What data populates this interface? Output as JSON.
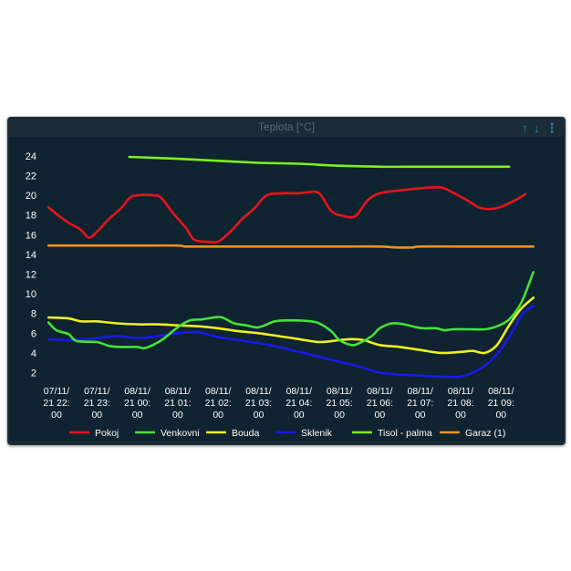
{
  "widget": {
    "title": "Teplota [°C]",
    "icons": {
      "up": "arrow-up-icon",
      "down": "arrow-down-icon",
      "menu": "vertical-dots-icon"
    }
  },
  "chart_data": {
    "type": "line",
    "xlabel": "",
    "ylabel": "",
    "ylim": [
      0,
      25
    ],
    "yticks": [
      2,
      4,
      6,
      8,
      10,
      12,
      14,
      16,
      18,
      20,
      22,
      24
    ],
    "xlim": [
      0,
      11.6
    ],
    "x_ticks": [
      {
        "x": 0,
        "lines": [
          "07/11/",
          "21 22:",
          "00"
        ]
      },
      {
        "x": 1,
        "lines": [
          "07/11/",
          "21 23:",
          "00"
        ]
      },
      {
        "x": 2,
        "lines": [
          "08/11/",
          "21 00:",
          "00"
        ]
      },
      {
        "x": 3,
        "lines": [
          "08/11/",
          "21 01:",
          "00"
        ]
      },
      {
        "x": 4,
        "lines": [
          "08/11/",
          "21 02:",
          "00"
        ]
      },
      {
        "x": 5,
        "lines": [
          "08/11/",
          "21 03:",
          "00"
        ]
      },
      {
        "x": 6,
        "lines": [
          "08/11/",
          "21 04:",
          "00"
        ]
      },
      {
        "x": 7,
        "lines": [
          "08/11/",
          "21 05:",
          "00"
        ]
      },
      {
        "x": 8,
        "lines": [
          "08/11/",
          "21 06:",
          "00"
        ]
      },
      {
        "x": 9,
        "lines": [
          "08/11/",
          "21 07:",
          "00"
        ]
      },
      {
        "x": 10,
        "lines": [
          "08/11/",
          "21 08:",
          "00"
        ]
      },
      {
        "x": 11,
        "lines": [
          "08/11/",
          "21 09:",
          "00"
        ]
      }
    ],
    "legend_position": "bottom",
    "grid": false,
    "series": [
      {
        "name": "Pokoj",
        "color": "#e8141c",
        "points": [
          [
            -0.2,
            18.8
          ],
          [
            0,
            18.1
          ],
          [
            0.3,
            17.2
          ],
          [
            0.6,
            16.5
          ],
          [
            0.8,
            15.7
          ],
          [
            1.0,
            16.3
          ],
          [
            1.3,
            17.6
          ],
          [
            1.6,
            18.7
          ],
          [
            1.8,
            19.7
          ],
          [
            2.0,
            20.0
          ],
          [
            2.4,
            20.0
          ],
          [
            2.6,
            19.7
          ],
          [
            2.9,
            18.1
          ],
          [
            3.2,
            16.7
          ],
          [
            3.4,
            15.5
          ],
          [
            3.7,
            15.3
          ],
          [
            4.0,
            15.3
          ],
          [
            4.3,
            16.3
          ],
          [
            4.6,
            17.6
          ],
          [
            4.9,
            18.7
          ],
          [
            5.2,
            20.0
          ],
          [
            5.6,
            20.2
          ],
          [
            6.0,
            20.2
          ],
          [
            6.2,
            20.3
          ],
          [
            6.5,
            20.2
          ],
          [
            6.8,
            18.4
          ],
          [
            7.1,
            17.9
          ],
          [
            7.4,
            17.9
          ],
          [
            7.7,
            19.5
          ],
          [
            8.0,
            20.2
          ],
          [
            8.5,
            20.5
          ],
          [
            9.0,
            20.7
          ],
          [
            9.5,
            20.8
          ],
          [
            9.8,
            20.3
          ],
          [
            10.2,
            19.4
          ],
          [
            10.5,
            18.7
          ],
          [
            10.9,
            18.7
          ],
          [
            11.3,
            19.4
          ],
          [
            11.6,
            20.1
          ]
        ]
      },
      {
        "name": "Venkovni",
        "color": "#45e23a",
        "points": [
          [
            -0.2,
            7.1
          ],
          [
            0,
            6.3
          ],
          [
            0.3,
            5.9
          ],
          [
            0.5,
            5.2
          ],
          [
            1.0,
            5.1
          ],
          [
            1.3,
            4.7
          ],
          [
            1.6,
            4.6
          ],
          [
            2.0,
            4.6
          ],
          [
            2.2,
            4.5
          ],
          [
            2.6,
            5.3
          ],
          [
            3.0,
            6.6
          ],
          [
            3.3,
            7.3
          ],
          [
            3.6,
            7.4
          ],
          [
            3.9,
            7.6
          ],
          [
            4.1,
            7.6
          ],
          [
            4.4,
            7.0
          ],
          [
            4.7,
            6.8
          ],
          [
            5.0,
            6.6
          ],
          [
            5.4,
            7.2
          ],
          [
            5.7,
            7.3
          ],
          [
            6.0,
            7.3
          ],
          [
            6.3,
            7.2
          ],
          [
            6.5,
            7.0
          ],
          [
            6.8,
            6.2
          ],
          [
            7.0,
            5.3
          ],
          [
            7.3,
            4.8
          ],
          [
            7.5,
            5.0
          ],
          [
            7.8,
            5.7
          ],
          [
            8.0,
            6.5
          ],
          [
            8.3,
            7.0
          ],
          [
            8.6,
            6.9
          ],
          [
            8.9,
            6.6
          ],
          [
            9.1,
            6.5
          ],
          [
            9.4,
            6.5
          ],
          [
            9.6,
            6.3
          ],
          [
            9.8,
            6.4
          ],
          [
            10.2,
            6.4
          ],
          [
            10.6,
            6.4
          ],
          [
            10.9,
            6.7
          ],
          [
            11.2,
            7.4
          ],
          [
            11.5,
            9.1
          ],
          [
            11.8,
            12.2
          ]
        ]
      },
      {
        "name": "Bouda",
        "color": "#f0f020",
        "points": [
          [
            -0.2,
            7.6
          ],
          [
            0.3,
            7.5
          ],
          [
            0.6,
            7.2
          ],
          [
            1.0,
            7.2
          ],
          [
            1.5,
            7.0
          ],
          [
            2.0,
            6.9
          ],
          [
            2.5,
            6.9
          ],
          [
            3.0,
            6.8
          ],
          [
            3.5,
            6.7
          ],
          [
            4.0,
            6.5
          ],
          [
            4.5,
            6.2
          ],
          [
            5.0,
            6.0
          ],
          [
            5.5,
            5.7
          ],
          [
            6.0,
            5.4
          ],
          [
            6.5,
            5.1
          ],
          [
            7.0,
            5.3
          ],
          [
            7.3,
            5.4
          ],
          [
            7.6,
            5.3
          ],
          [
            8.0,
            4.8
          ],
          [
            8.5,
            4.6
          ],
          [
            9.0,
            4.3
          ],
          [
            9.5,
            4.0
          ],
          [
            10.0,
            4.1
          ],
          [
            10.3,
            4.2
          ],
          [
            10.6,
            4.0
          ],
          [
            10.9,
            4.8
          ],
          [
            11.2,
            6.8
          ],
          [
            11.5,
            8.5
          ],
          [
            11.8,
            9.6
          ]
        ]
      },
      {
        "name": "Sklenik",
        "color": "#1a1ae8",
        "points": [
          [
            -0.2,
            5.4
          ],
          [
            0.3,
            5.3
          ],
          [
            1.0,
            5.5
          ],
          [
            1.5,
            5.7
          ],
          [
            2.0,
            5.5
          ],
          [
            2.5,
            5.7
          ],
          [
            3.0,
            6.0
          ],
          [
            3.5,
            6.1
          ],
          [
            4.0,
            5.6
          ],
          [
            4.5,
            5.3
          ],
          [
            5.0,
            5.0
          ],
          [
            5.5,
            4.6
          ],
          [
            6.0,
            4.1
          ],
          [
            6.5,
            3.6
          ],
          [
            7.0,
            3.1
          ],
          [
            7.5,
            2.6
          ],
          [
            8.0,
            2.0
          ],
          [
            8.5,
            1.8
          ],
          [
            9.0,
            1.7
          ],
          [
            9.5,
            1.6
          ],
          [
            10.0,
            1.6
          ],
          [
            10.4,
            2.2
          ],
          [
            10.8,
            3.4
          ],
          [
            11.2,
            5.6
          ],
          [
            11.5,
            7.8
          ],
          [
            11.8,
            8.8
          ]
        ]
      },
      {
        "name": "Tisol - palma",
        "color": "#7df01e",
        "points": [
          [
            1.8,
            23.9
          ],
          [
            3.0,
            23.7
          ],
          [
            4.0,
            23.5
          ],
          [
            5.0,
            23.3
          ],
          [
            6.0,
            23.2
          ],
          [
            7.0,
            23.0
          ],
          [
            8.0,
            22.9
          ],
          [
            9.0,
            22.9
          ],
          [
            10.0,
            22.9
          ],
          [
            11.2,
            22.9
          ]
        ]
      },
      {
        "name": "Garaz (1)",
        "color": "#f0921e",
        "points": [
          [
            -0.2,
            14.9
          ],
          [
            1.0,
            14.9
          ],
          [
            2.0,
            14.9
          ],
          [
            3.0,
            14.9
          ],
          [
            3.2,
            14.8
          ],
          [
            4.0,
            14.8
          ],
          [
            5.0,
            14.8
          ],
          [
            6.0,
            14.8
          ],
          [
            7.0,
            14.8
          ],
          [
            8.0,
            14.8
          ],
          [
            8.4,
            14.7
          ],
          [
            8.8,
            14.7
          ],
          [
            9.0,
            14.8
          ],
          [
            10.0,
            14.8
          ],
          [
            11.0,
            14.8
          ],
          [
            11.8,
            14.8
          ]
        ]
      }
    ]
  }
}
